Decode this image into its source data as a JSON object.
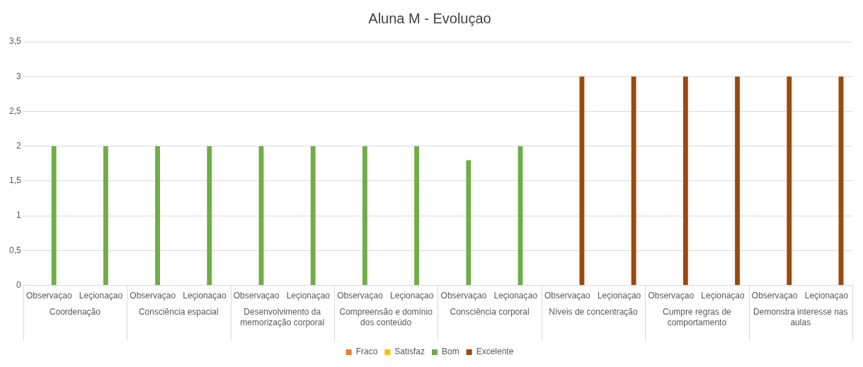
{
  "chart_data": {
    "type": "bar",
    "title": "Aluna M - Evoluçao",
    "categories": [
      "Observaçao",
      "Leçionaçao",
      "Observaçao",
      "Leçionaçao",
      "Observaçao",
      "Leçionaçao",
      "Observaçao",
      "Leçionaçao",
      "Observaçao",
      "Leçionaçao",
      "Observaçao",
      "Leçionaçao",
      "Observaçao",
      "Leçionaçao",
      "Observaçao",
      "Leçionaçao"
    ],
    "annotations": [
      "Coordenação",
      "Consciência espacial",
      "Desenvolvimento da memorização corporal",
      "Compreensão e domínio dos conteúdo",
      "Consciência corporal",
      "Níveis de concentração",
      "Cumpre regras de comportamento",
      "Demonstra interesse nas aulas"
    ],
    "series": [
      {
        "name": "Fraco",
        "color": "#ed7d31",
        "values": [
          null,
          null,
          null,
          null,
          null,
          null,
          null,
          null,
          null,
          null,
          null,
          null,
          null,
          null,
          null,
          null
        ]
      },
      {
        "name": "Satisfaz",
        "color": "#ffc000",
        "values": [
          null,
          null,
          null,
          null,
          null,
          null,
          null,
          null,
          null,
          null,
          null,
          null,
          null,
          null,
          null,
          null
        ]
      },
      {
        "name": "Bom",
        "color": "#70ad47",
        "values": [
          2,
          2,
          2,
          2,
          2,
          2,
          2,
          2,
          1.8,
          2,
          null,
          null,
          null,
          null,
          null,
          null
        ]
      },
      {
        "name": "Excelente",
        "color": "#9e480e",
        "values": [
          null,
          null,
          null,
          null,
          null,
          null,
          null,
          null,
          null,
          null,
          3,
          3,
          3,
          3,
          3,
          3
        ]
      }
    ],
    "ylim": [
      0,
      3.5
    ],
    "yticks": [
      {
        "value": 0,
        "label": "0"
      },
      {
        "value": 0.5,
        "label": "0,5"
      },
      {
        "value": 1,
        "label": "1"
      },
      {
        "value": 1.5,
        "label": "1,5"
      },
      {
        "value": 2,
        "label": "2"
      },
      {
        "value": 2.5,
        "label": "2,5"
      },
      {
        "value": 3,
        "label": "3"
      },
      {
        "value": 3.5,
        "label": "3,5"
      }
    ],
    "grid": "y",
    "legend": "bottom"
  }
}
